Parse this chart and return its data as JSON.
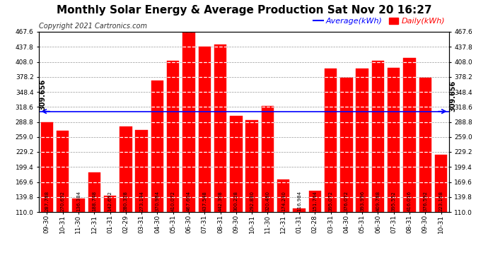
{
  "title": "Monthly Solar Energy & Average Production Sat Nov 20 16:27",
  "copyright": "Copyright 2021 Cartronics.com",
  "average_label": "Average(kWh)",
  "daily_label": "Daily(kWh)",
  "average_value": 309.656,
  "average_annotation": "309.656",
  "categories": [
    "09-30",
    "10-31",
    "11-30",
    "12-31",
    "01-31",
    "02-29",
    "03-31",
    "04-30",
    "05-31",
    "06-30",
    "07-31",
    "08-31",
    "09-30",
    "10-31",
    "11-30",
    "12-31",
    "01-31",
    "02-28",
    "03-31",
    "04-30",
    "05-31",
    "06-30",
    "07-31",
    "08-31",
    "09-30",
    "10-31"
  ],
  "values": [
    287.788,
    270.632,
    136.384,
    188.748,
    142.692,
    280.328,
    273.144,
    370.984,
    410.072,
    467.604,
    437.548,
    442.308,
    300.228,
    292.88,
    320.48,
    174.24,
    116.984,
    151.744,
    395.072,
    376.072,
    393.996,
    409.788,
    395.552,
    416.016,
    376.592,
    223.168
  ],
  "ylim_min": 110.0,
  "ylim_max": 467.6,
  "yticks": [
    110.0,
    139.8,
    169.6,
    199.4,
    229.2,
    259.0,
    288.8,
    318.6,
    348.4,
    378.2,
    408.0,
    437.8,
    467.6
  ],
  "bar_color": "#ff0000",
  "average_line_color": "#0000ff",
  "background_color": "#ffffff",
  "grid_color": "#999999",
  "title_fontsize": 11,
  "copyright_fontsize": 7,
  "legend_fontsize": 8,
  "tick_fontsize": 6.5,
  "value_fontsize": 5.0,
  "avg_annotation_fontsize": 7
}
